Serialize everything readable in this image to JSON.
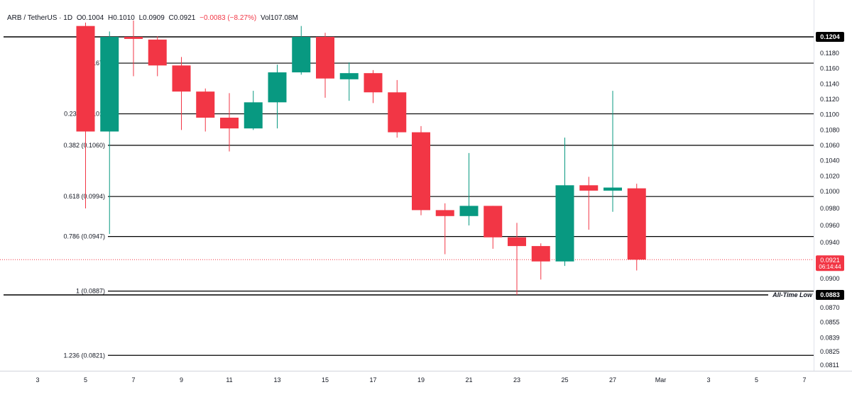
{
  "header": {
    "symbol": "ARB / TetherUS · 1D",
    "open": "O0.1004",
    "high": "H0.1010",
    "low": "L0.0909",
    "close": "C0.0921",
    "change": "−0.0083 (−8.27%)",
    "volume": "Vol107.08M"
  },
  "colors": {
    "up": "#089981",
    "down": "#f23645",
    "level_line": "#000000",
    "axis_text": "#131722",
    "price_tag_bg": "#000000",
    "current_tag_bg": "#f23645"
  },
  "chart_data": {
    "type": "candlestick",
    "x_tick_labels": [
      "3",
      "5",
      "7",
      "9",
      "11",
      "13",
      "15",
      "17",
      "19",
      "21",
      "23",
      "25",
      "27",
      "Mar",
      "3",
      "5",
      "7"
    ],
    "y_tick_labels": [
      "0.1180",
      "0.1160",
      "0.1140",
      "0.1120",
      "0.1100",
      "0.1080",
      "0.1060",
      "0.1040",
      "0.1020",
      "0.1000",
      "0.0980",
      "0.0960",
      "0.0940",
      "0.0900",
      "0.0870",
      "0.0855",
      "0.0839",
      "0.0825",
      "0.0811"
    ],
    "candles": [
      {
        "date": "Feb 5",
        "open": 0.122,
        "high": 0.1225,
        "low": 0.098,
        "close": 0.1078
      },
      {
        "date": "Feb 6",
        "open": 0.1078,
        "high": 0.1212,
        "low": 0.095,
        "close": 0.1204
      },
      {
        "date": "Feb 7",
        "open": 0.1204,
        "high": 0.1228,
        "low": 0.115,
        "close": 0.1201
      },
      {
        "date": "Feb 8",
        "open": 0.12,
        "high": 0.1205,
        "low": 0.115,
        "close": 0.1164
      },
      {
        "date": "Feb 9",
        "open": 0.1164,
        "high": 0.1175,
        "low": 0.108,
        "close": 0.113
      },
      {
        "date": "Feb 10",
        "open": 0.113,
        "high": 0.1134,
        "low": 0.1078,
        "close": 0.1096
      },
      {
        "date": "Feb 11",
        "open": 0.1096,
        "high": 0.1128,
        "low": 0.1052,
        "close": 0.1082
      },
      {
        "date": "Feb 12",
        "open": 0.1082,
        "high": 0.1131,
        "low": 0.108,
        "close": 0.1116
      },
      {
        "date": "Feb 13",
        "open": 0.1116,
        "high": 0.1165,
        "low": 0.1082,
        "close": 0.1155
      },
      {
        "date": "Feb 14",
        "open": 0.1155,
        "high": 0.122,
        "low": 0.1152,
        "close": 0.1204
      },
      {
        "date": "Feb 15",
        "open": 0.1204,
        "high": 0.121,
        "low": 0.1122,
        "close": 0.1147
      },
      {
        "date": "Feb 16",
        "open": 0.1146,
        "high": 0.1168,
        "low": 0.1118,
        "close": 0.1154
      },
      {
        "date": "Feb 17",
        "open": 0.1154,
        "high": 0.1158,
        "low": 0.1115,
        "close": 0.1129
      },
      {
        "date": "Feb 18",
        "open": 0.1129,
        "high": 0.1145,
        "low": 0.107,
        "close": 0.1077
      },
      {
        "date": "Feb 19",
        "open": 0.1077,
        "high": 0.1085,
        "low": 0.0972,
        "close": 0.0978
      },
      {
        "date": "Feb 20",
        "open": 0.0978,
        "high": 0.0986,
        "low": 0.0927,
        "close": 0.0971
      },
      {
        "date": "Feb 21",
        "open": 0.0971,
        "high": 0.105,
        "low": 0.096,
        "close": 0.0983
      },
      {
        "date": "Feb 22",
        "open": 0.0983,
        "high": 0.0983,
        "low": 0.0933,
        "close": 0.0946
      },
      {
        "date": "Feb 23",
        "open": 0.0946,
        "high": 0.0963,
        "low": 0.0883,
        "close": 0.0936
      },
      {
        "date": "Feb 24",
        "open": 0.0936,
        "high": 0.0939,
        "low": 0.0899,
        "close": 0.0919
      },
      {
        "date": "Feb 25",
        "open": 0.0919,
        "high": 0.107,
        "low": 0.0914,
        "close": 0.1008
      },
      {
        "date": "Feb 26",
        "open": 0.1008,
        "high": 0.1019,
        "low": 0.0955,
        "close": 0.1001
      },
      {
        "date": "Feb 27",
        "open": 0.1001,
        "high": 0.1131,
        "low": 0.0976,
        "close": 0.1005
      },
      {
        "date": "Feb 28",
        "open": 0.1004,
        "high": 0.101,
        "low": 0.0909,
        "close": 0.0921
      }
    ],
    "fib_levels": [
      {
        "label": "0 (0.1167)",
        "value": 0.1167
      },
      {
        "label": "0.236 (0.1101)",
        "value": 0.1101
      },
      {
        "label": "0.382 (0.1060)",
        "value": 0.106
      },
      {
        "label": "0.618 (0.0994)",
        "value": 0.0994
      },
      {
        "label": "0.786 (0.0947)",
        "value": 0.0947
      },
      {
        "label": "1 (0.0887)",
        "value": 0.0887
      },
      {
        "label": "1.236 (0.0821)",
        "value": 0.0821
      }
    ],
    "resistance": {
      "value": 0.1204,
      "tag": "0.1204"
    },
    "all_time_low": {
      "value": 0.0883,
      "tag": "0.0883",
      "annotation": "All-Time Low"
    },
    "current_price": {
      "value": 0.0921,
      "tag": "0.0921",
      "countdown": "06:14:44"
    }
  }
}
